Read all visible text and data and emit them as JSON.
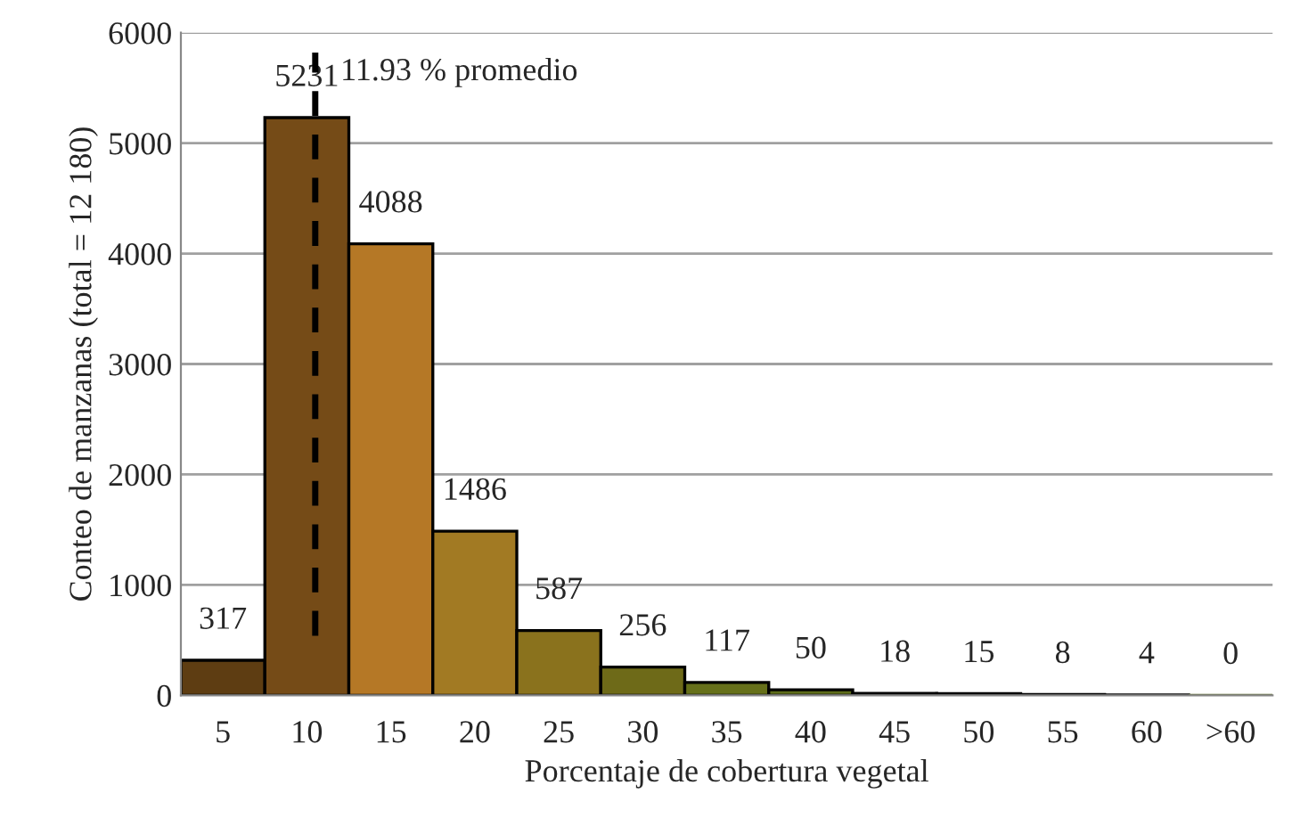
{
  "chart_data": {
    "type": "bar",
    "xlabel": "Porcentaje de cobertura vegetal",
    "ylabel": "Conteo de manzanas (total = 12 180)",
    "categories": [
      "5",
      "10",
      "15",
      "20",
      "25",
      "30",
      "35",
      "40",
      "45",
      "50",
      "55",
      "60",
      ">60"
    ],
    "values": [
      317,
      5231,
      4088,
      1486,
      587,
      256,
      117,
      50,
      18,
      15,
      8,
      4,
      0
    ],
    "colors": [
      "#5e3d12",
      "#754b17",
      "#b57826",
      "#a27a23",
      "#8a721d",
      "#6e6a18",
      "#66701a",
      "#5e6d1a",
      "#58691a",
      "#55661a",
      "#52631a",
      "#4f601a",
      "#4c5d1a"
    ],
    "ylim": [
      0,
      6000
    ],
    "yticks": [
      0,
      1000,
      2000,
      3000,
      4000,
      5000,
      6000
    ],
    "grid": "y",
    "data_labels": true,
    "annotations": [
      "11.93 % promedio"
    ]
  }
}
